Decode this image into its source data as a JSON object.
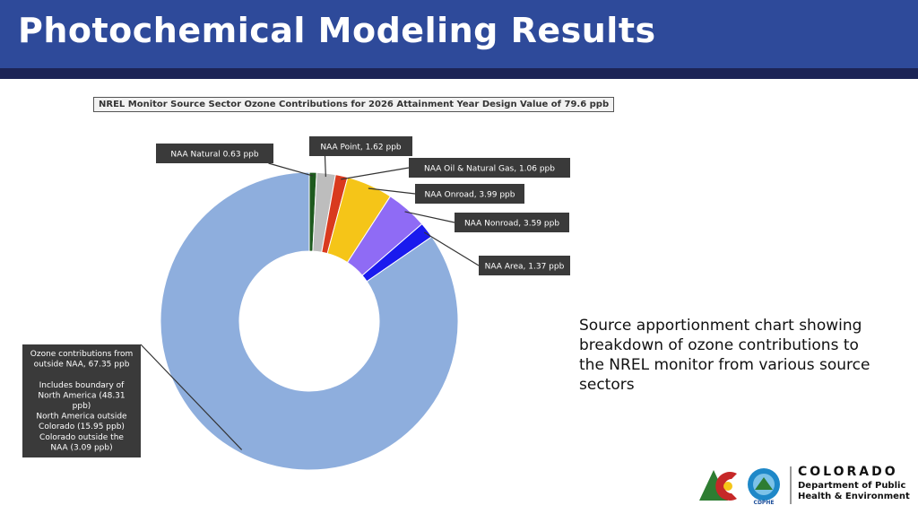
{
  "slide": {
    "title": "Photochemical Modeling Results",
    "caption": "Source apportionment chart showing breakdown of ozone contributions to the NREL monitor from various source sectors"
  },
  "logo": {
    "word": "COLORADO",
    "dept_line1": "Department of Public",
    "dept_line2": "Health & Environment",
    "badge": "CDPHE"
  },
  "chart_data": {
    "type": "pie",
    "title": "NREL Monitor Source Sector Ozone Contributions for 2026 Attainment Year Design Value of 79.6 ppb",
    "donut": true,
    "slices": [
      {
        "name": "NAA Natural",
        "value": 0.63,
        "color": "#1e5a1e",
        "label": "NAA Natural 0.63 ppb"
      },
      {
        "name": "NAA Point",
        "value": 1.62,
        "color": "#bdbdbd",
        "label": "NAA Point, 1.62 ppb"
      },
      {
        "name": "NAA Oil & Natural Gas",
        "value": 1.06,
        "color": "#d93a1e",
        "label": "NAA Oil & Natural Gas, 1.06 ppb"
      },
      {
        "name": "NAA Onroad",
        "value": 3.99,
        "color": "#f5c518",
        "label": "NAA Onroad, 3.99 ppb"
      },
      {
        "name": "NAA Nonroad",
        "value": 3.59,
        "color": "#8f6bf5",
        "label": "NAA Nonroad, 3.59 ppb"
      },
      {
        "name": "NAA Area",
        "value": 1.37,
        "color": "#1a1aee",
        "label": "NAA Area, 1.37 ppb"
      },
      {
        "name": "Ozone contributions from outside NAA",
        "value": 67.35,
        "color": "#8eaedd",
        "label_lines": [
          "Ozone contributions from",
          "outside NAA, 67.35 ppb",
          "",
          "Includes boundary of",
          "North America (48.31",
          "ppb)",
          "North America outside",
          "Colorado (15.95 ppb)",
          "Colorado outside the",
          "NAA (3.09 ppb)"
        ]
      }
    ]
  }
}
